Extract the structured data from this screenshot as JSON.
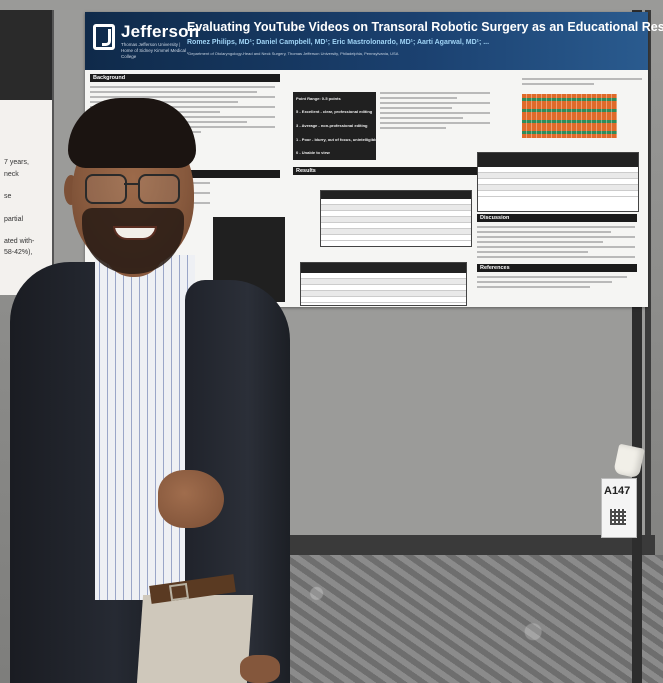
{
  "scene": {
    "description_tag": "photo",
    "placard_id": "A147"
  },
  "poster": {
    "logo": "Jefferson",
    "logo_subtitle": "Thomas Jefferson University | Home of Sidney Kimmel Medical College",
    "title": "Evaluating YouTube Videos on Transoral Robotic Surgery as an Educational Resource for Trainees",
    "authors": "Romez Philips, MD¹; Daniel Campbell, MD¹; Eric Mastrolonardo, MD¹; Aarti Agarwal, MD¹; ...",
    "affiliation": "¹Department of Otolaryngology-Head and Neck Surgery, Thomas Jefferson University, Philadelphia, Pennsylvania, USA",
    "sections": {
      "background": "Background",
      "results": "Results",
      "discussion": "Discussion",
      "references": "References"
    },
    "rating_box": [
      "Point Range: 0-5 points",
      "5 - Excellent - clear, professional editing",
      "3 - Average - non-professional editing",
      "1 - Poor - blurry, out of focus, unintelligible",
      "0 - Unable to view"
    ],
    "tables": {
      "uploader_header": "Uploader Source",
      "uploader_count_header": "Number of Videos (% of total videos)",
      "uploader_rows": [
        "Academic Medical Center",
        "Private Educational Company",
        "Independent Uploader",
        "Video Type",
        "Lecture based",
        "OR based"
      ],
      "comparison_headers": [
        "Measure",
        "Overall",
        "Academic Medical Center",
        "Private Educational Company",
        "Independent Uploader",
        "p-value"
      ]
    }
  },
  "left_poster": {
    "lines": [
      "7 years,",
      "neck",
      "se",
      "partial",
      "ated with-",
      "58-42%),"
    ]
  },
  "colors": {
    "header_blue": "#1b4170",
    "jacket": "#23262e",
    "board": "#9b9b99"
  }
}
